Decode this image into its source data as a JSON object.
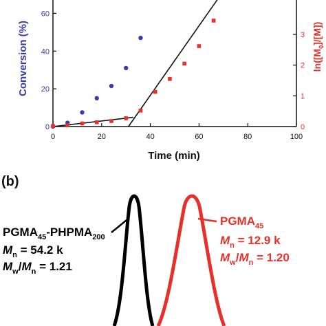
{
  "chart_data": [
    {
      "type": "scatter",
      "xlabel": "Time (min)",
      "ylabel_left": "Conversion (%)",
      "ylabel_right": "ln([M0]/[M])",
      "xlim": [
        0,
        100
      ],
      "ylim_left": [
        0,
        70
      ],
      "ylim_right": [
        0,
        4.3
      ],
      "x_ticks": [
        0,
        20,
        40,
        60,
        80,
        100
      ],
      "y_ticks_left": [
        0,
        20,
        40,
        60
      ],
      "y_ticks_right": [
        0,
        1,
        2,
        3
      ],
      "colors": {
        "conversion": "#3b3bb0",
        "ln": "#e8302a",
        "fit": "#111111"
      },
      "series": [
        {
          "axis": "left",
          "x": [
            0,
            6,
            12,
            18,
            24,
            30,
            36
          ],
          "y": [
            0,
            2,
            7.5,
            15,
            21.5,
            31,
            47
          ]
        },
        {
          "axis": "right",
          "x": [
            0,
            6,
            12,
            18,
            24,
            30,
            36,
            42,
            48,
            54,
            60,
            66
          ],
          "y": [
            0.02,
            0.04,
            0.1,
            0.14,
            0.18,
            0.27,
            0.52,
            1.13,
            1.55,
            2.05,
            2.62,
            3.45
          ]
        }
      ],
      "fits": [
        {
          "axis": "right",
          "x": [
            0,
            33
          ],
          "y": [
            0,
            0.3
          ]
        },
        {
          "axis": "right",
          "x": [
            31,
            69
          ],
          "y": [
            0.0,
            4.3
          ]
        }
      ],
      "grid": false
    },
    {
      "type": "line",
      "panel_label": "(b)",
      "peaks": [
        {
          "color": "#000000",
          "label_main": "PGMA",
          "label_sub1": "45",
          "label_mid": "-PHPMA",
          "label_sub2": "200",
          "mn_value": " = 54.2 k",
          "disp_value": " = 1.21"
        },
        {
          "color": "#e8302a",
          "label_main": "PGMA",
          "label_sub1": "45",
          "mn_value": " = 12.9 k",
          "disp_value": " = 1.20"
        }
      ],
      "symbols": {
        "M": "M",
        "n": "n",
        "w": "w",
        "slash": "/"
      }
    }
  ]
}
